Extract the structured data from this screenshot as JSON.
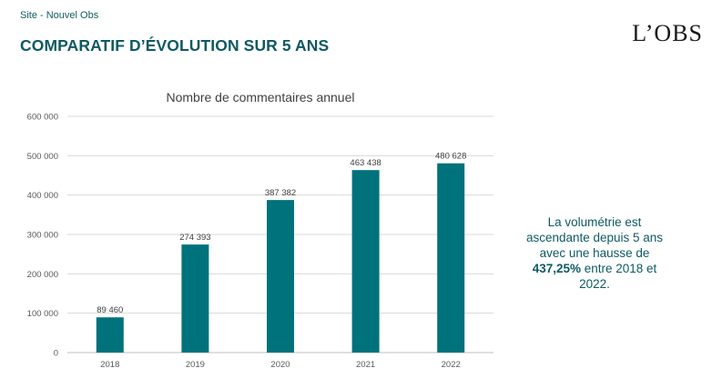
{
  "header": {
    "site": "Site - Nouvel Obs",
    "title": "COMPARATIF D’ÉVOLUTION SUR 5 ANS",
    "logo": "L’OBS"
  },
  "callout": {
    "line1": "La volumétrie est",
    "line2": "ascendante depuis 5 ans",
    "line3": "avec une hausse de",
    "highlight": "437,25%",
    "line4_rest": " entre 2018 et",
    "line5": "2022."
  },
  "colors": {
    "bar": "#00727c",
    "accent_text": "#0e5a63",
    "grid": "#d9d9d9"
  },
  "chart_data": {
    "type": "bar",
    "title": "Nombre de commentaires annuel",
    "categories": [
      "2018",
      "2019",
      "2020",
      "2021",
      "2022"
    ],
    "values": [
      89460,
      274393,
      387382,
      463438,
      480628
    ],
    "value_labels": [
      "89 460",
      "274 393",
      "387 382",
      "463 438",
      "480 628"
    ],
    "ylim": [
      0,
      600000
    ],
    "yticks": [
      0,
      100000,
      200000,
      300000,
      400000,
      500000,
      600000
    ],
    "ytick_labels": [
      "0",
      "100 000",
      "200 000",
      "300 000",
      "400 000",
      "500 000",
      "600 000"
    ],
    "xlabel": "",
    "ylabel": "",
    "grid": true,
    "legend": "none"
  }
}
